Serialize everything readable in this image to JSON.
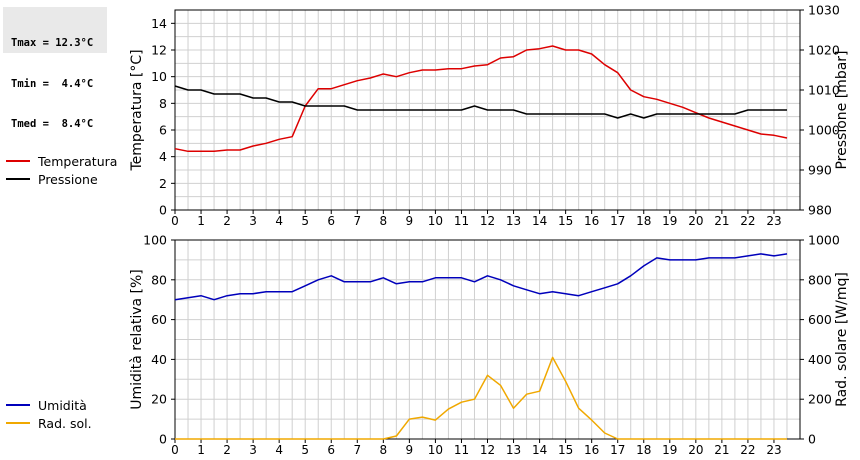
{
  "stats": {
    "tmax": "Tmax = 12.3°C",
    "tmin": "Tmin =  4.4°C",
    "tmed": "Tmed =  8.4°C"
  },
  "chart_data": [
    {
      "type": "line",
      "ylabel": "Temperatura [°C]",
      "y2label": "Pressione [mbar]",
      "xlim": [
        0,
        24
      ],
      "ylim": [
        0,
        15
      ],
      "y2lim": [
        980,
        1030
      ],
      "xticks": [
        "0",
        "1",
        "2",
        "3",
        "4",
        "5",
        "6",
        "7",
        "8",
        "9",
        "10",
        "11",
        "12",
        "13",
        "14",
        "15",
        "16",
        "17",
        "18",
        "19",
        "20",
        "21",
        "22",
        "23"
      ],
      "yticks": [
        "0",
        "2",
        "4",
        "6",
        "8",
        "10",
        "12",
        "14"
      ],
      "y2ticks": [
        "980",
        "990",
        "1000",
        "1010",
        "1020",
        "1030"
      ],
      "grid": true,
      "series": [
        {
          "name": "Temperatura",
          "color": "#dd0000",
          "axis": "left",
          "x": [
            0,
            0.5,
            1,
            1.5,
            2,
            2.5,
            3,
            3.5,
            4,
            4.5,
            5,
            5.5,
            6,
            6.5,
            7,
            7.5,
            8,
            8.5,
            9,
            9.5,
            10,
            10.5,
            11,
            11.5,
            12,
            12.5,
            13,
            13.5,
            14,
            14.5,
            15,
            15.5,
            16,
            16.5,
            17,
            17.5,
            18,
            18.5,
            19,
            19.5,
            20,
            20.5,
            21,
            21.5,
            22,
            22.5,
            23,
            23.5
          ],
          "values": [
            4.6,
            4.4,
            4.4,
            4.4,
            4.5,
            4.5,
            4.8,
            5.0,
            5.3,
            5.5,
            7.8,
            9.1,
            9.1,
            9.4,
            9.7,
            9.9,
            10.2,
            10.0,
            10.3,
            10.5,
            10.5,
            10.6,
            10.6,
            10.8,
            10.9,
            11.4,
            11.5,
            12.0,
            12.1,
            12.3,
            12.0,
            12.0,
            11.7,
            10.9,
            10.3,
            9.0,
            8.5,
            8.3,
            8.0,
            7.7,
            7.3,
            6.9,
            6.6,
            6.3,
            6.0,
            5.7,
            5.6,
            5.4
          ]
        },
        {
          "name": "Pressione",
          "color": "#000000",
          "axis": "right",
          "x": [
            0,
            0.5,
            1,
            1.5,
            2,
            2.5,
            3,
            3.5,
            4,
            4.5,
            5,
            5.5,
            6,
            6.5,
            7,
            7.5,
            8,
            8.5,
            9,
            9.5,
            10,
            10.5,
            11,
            11.5,
            12,
            12.5,
            13,
            13.5,
            14,
            14.5,
            15,
            15.5,
            16,
            16.5,
            17,
            17.5,
            18,
            18.5,
            19,
            19.5,
            20,
            20.5,
            21,
            21.5,
            22,
            22.5,
            23,
            23.5
          ],
          "values": [
            1011,
            1010,
            1010,
            1009,
            1009,
            1009,
            1008,
            1008,
            1007,
            1007,
            1006,
            1006,
            1006,
            1006,
            1005,
            1005,
            1005,
            1005,
            1005,
            1005,
            1005,
            1005,
            1005,
            1006,
            1005,
            1005,
            1005,
            1004,
            1004,
            1004,
            1004,
            1004,
            1004,
            1004,
            1003,
            1004,
            1003,
            1004,
            1004,
            1004,
            1004,
            1004,
            1004,
            1004,
            1005,
            1005,
            1005,
            1005
          ]
        }
      ]
    },
    {
      "type": "line",
      "ylabel": "Umidità relativa [%]",
      "y2label": "Rad. solare [W/mq]",
      "xlim": [
        0,
        24
      ],
      "ylim": [
        0,
        100
      ],
      "y2lim": [
        0,
        1000
      ],
      "xticks": [
        "0",
        "1",
        "2",
        "3",
        "4",
        "5",
        "6",
        "7",
        "8",
        "9",
        "10",
        "11",
        "12",
        "13",
        "14",
        "15",
        "16",
        "17",
        "18",
        "19",
        "20",
        "21",
        "22",
        "23"
      ],
      "yticks": [
        "0",
        "20",
        "40",
        "60",
        "80",
        "100"
      ],
      "y2ticks": [
        "0",
        "200",
        "400",
        "600",
        "800",
        "1000"
      ],
      "grid": true,
      "series": [
        {
          "name": "Umidità",
          "color": "#0000bb",
          "axis": "left",
          "x": [
            0,
            0.5,
            1,
            1.5,
            2,
            2.5,
            3,
            3.5,
            4,
            4.5,
            5,
            5.5,
            6,
            6.5,
            7,
            7.5,
            8,
            8.5,
            9,
            9.5,
            10,
            10.5,
            11,
            11.5,
            12,
            12.5,
            13,
            13.5,
            14,
            14.5,
            15,
            15.5,
            16,
            16.5,
            17,
            17.5,
            18,
            18.5,
            19,
            19.5,
            20,
            20.5,
            21,
            21.5,
            22,
            22.5,
            23,
            23.5
          ],
          "values": [
            70,
            71,
            72,
            70,
            72,
            73,
            73,
            74,
            74,
            74,
            77,
            80,
            82,
            79,
            79,
            79,
            81,
            78,
            79,
            79,
            81,
            81,
            81,
            79,
            82,
            80,
            77,
            75,
            73,
            74,
            73,
            72,
            74,
            76,
            78,
            82,
            87,
            91,
            90,
            90,
            90,
            91,
            91,
            91,
            92,
            93,
            92,
            93
          ]
        },
        {
          "name": "Rad. sol.",
          "color": "#f0a800",
          "axis": "right",
          "x": [
            0,
            0.5,
            1,
            1.5,
            2,
            2.5,
            3,
            3.5,
            4,
            4.5,
            5,
            5.5,
            6,
            6.5,
            7,
            7.5,
            8,
            8.5,
            9,
            9.5,
            10,
            10.5,
            11,
            11.5,
            12,
            12.5,
            13,
            13.5,
            14,
            14.5,
            15,
            15.5,
            16,
            16.5,
            17,
            17.5,
            18,
            18.5,
            19,
            19.5,
            20,
            20.5,
            21,
            21.5,
            22,
            22.5,
            23,
            23.5
          ],
          "values": [
            0,
            0,
            0,
            0,
            0,
            0,
            0,
            0,
            0,
            0,
            0,
            0,
            0,
            0,
            0,
            0,
            0,
            15,
            100,
            110,
            95,
            150,
            185,
            200,
            320,
            270,
            155,
            225,
            240,
            410,
            290,
            155,
            95,
            30,
            0,
            0,
            0,
            0,
            0,
            0,
            0,
            0,
            0,
            0,
            0,
            0,
            0,
            0
          ]
        }
      ]
    }
  ]
}
